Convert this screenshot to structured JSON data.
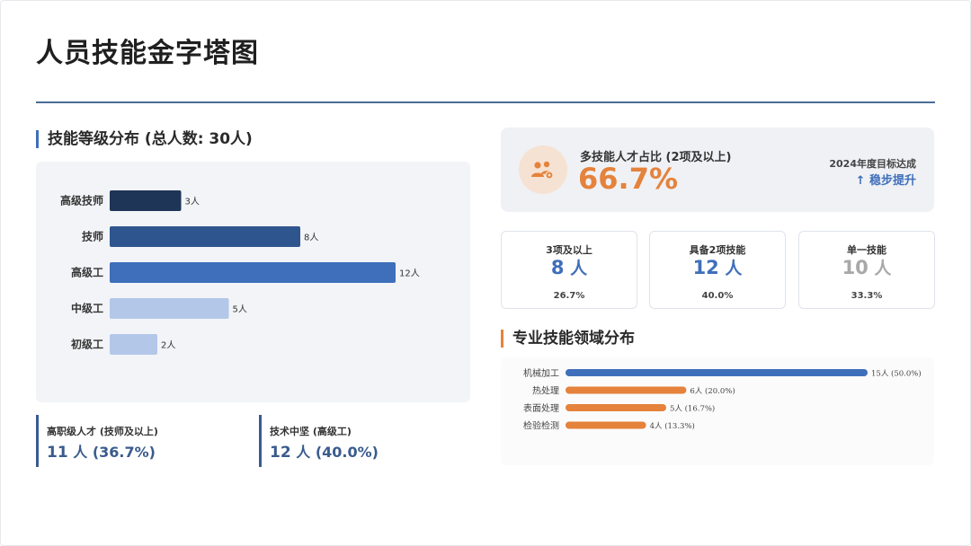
{
  "page": {
    "title": "人员技能金字塔图"
  },
  "skill_section": {
    "title": "技能等级分布 (总人数: 30人)"
  },
  "summary": {
    "senior_label": "高职级人才 (技师及以上)",
    "senior_count": "11",
    "senior_unit_pct": " 人 (36.7%)",
    "core_label": "技术中坚 (高级工)",
    "core_count": "12",
    "core_unit_pct": " 人 (40.0%)"
  },
  "highlight": {
    "label": "多技能人才占比 (2项及以上)",
    "value": "66.7%",
    "goal_label": "2024年度目标达成",
    "goal_value": "↑ 稳步提升",
    "icon": "people-gear-icon"
  },
  "stat_cards": [
    {
      "label": "3项及以上",
      "count": "8",
      "unit": " 人",
      "pct": "26.7%"
    },
    {
      "label": "具备2项技能",
      "count": "12",
      "unit": " 人",
      "pct": "40.0%"
    },
    {
      "label": "单一技能",
      "count": "10",
      "unit": " 人",
      "pct": "33.3%"
    }
  ],
  "domain_section": {
    "title": "专业技能领域分布"
  },
  "colors": {
    "level_bars": [
      "#1f3558",
      "#2f558f",
      "#3f6fba",
      "#b3c7e9",
      "#b3c7e9"
    ],
    "domain_primary": "#3f6fba",
    "domain_secondary": "#e5823b"
  },
  "chart_data": [
    {
      "type": "bar",
      "orientation": "horizontal",
      "categories": [
        "高级技师",
        "技师",
        "高级工",
        "中级工",
        "初级工"
      ],
      "values": [
        3,
        8,
        12,
        5,
        2
      ],
      "value_labels": [
        "3人",
        "8人",
        "12人",
        "5人",
        "2人"
      ],
      "xlim": [
        0,
        12
      ]
    },
    {
      "type": "bar",
      "orientation": "horizontal",
      "categories": [
        "机械加工",
        "热处理",
        "表面处理",
        "检验检测"
      ],
      "values": [
        15,
        6,
        5,
        4
      ],
      "value_labels": [
        "15人 (50.0%)",
        "6人 (20.0%)",
        "5人 (16.7%)",
        "4人 (13.3%)"
      ],
      "xlim": [
        0,
        15
      ]
    }
  ]
}
